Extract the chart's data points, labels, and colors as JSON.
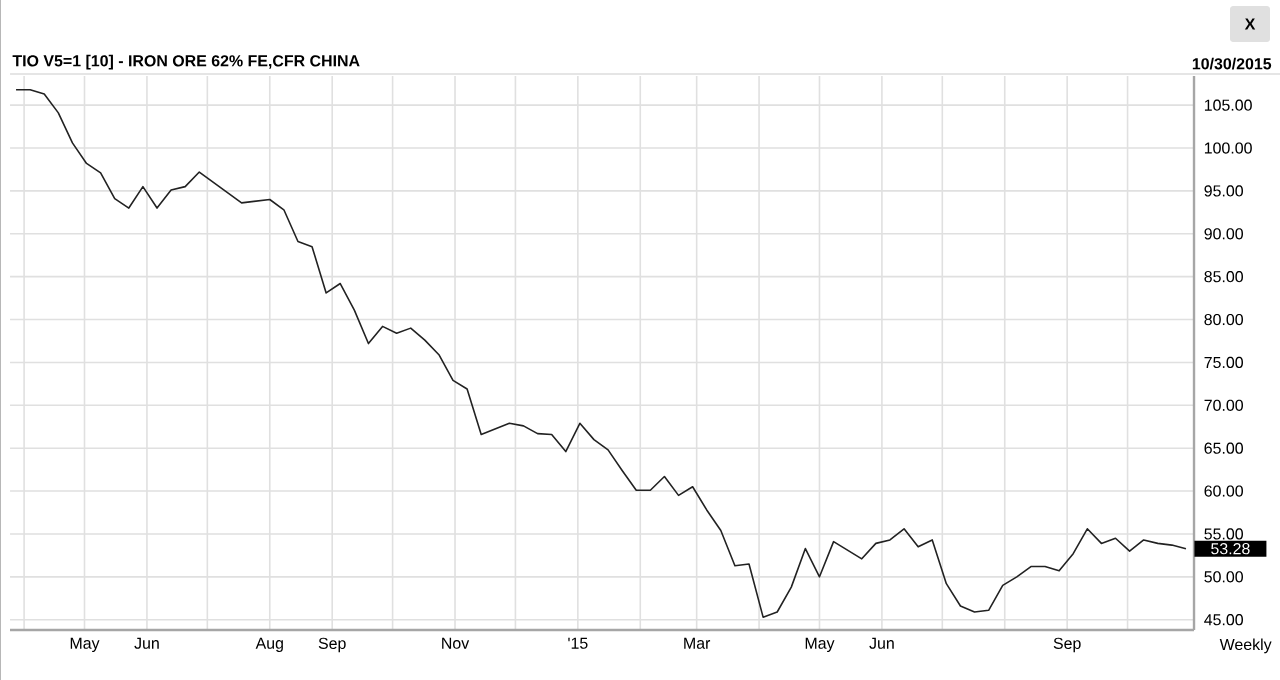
{
  "chart_data": {
    "type": "line",
    "title": "TIO V5=1 [10] - IRON ORE 62% FE,CFR CHINA",
    "x": [
      "2014-03-28",
      "2014-04-04",
      "2014-04-11",
      "2014-04-18",
      "2014-04-25",
      "2014-05-02",
      "2014-05-09",
      "2014-05-16",
      "2014-05-23",
      "2014-05-30",
      "2014-06-06",
      "2014-06-13",
      "2014-06-20",
      "2014-06-27",
      "2014-07-04",
      "2014-07-18",
      "2014-08-01",
      "2014-08-08",
      "2014-08-15",
      "2014-08-22",
      "2014-08-29",
      "2014-09-05",
      "2014-09-12",
      "2014-09-19",
      "2014-09-26",
      "2014-10-03",
      "2014-10-10",
      "2014-10-17",
      "2014-10-24",
      "2014-10-31",
      "2014-11-07",
      "2014-11-14",
      "2014-11-28",
      "2014-12-05",
      "2014-12-12",
      "2014-12-19",
      "2014-12-26",
      "2015-01-02",
      "2015-01-09",
      "2015-01-16",
      "2015-01-23",
      "2015-01-30",
      "2015-02-06",
      "2015-02-13",
      "2015-02-20",
      "2015-02-27",
      "2015-03-06",
      "2015-03-13",
      "2015-03-20",
      "2015-03-27",
      "2015-04-03",
      "2015-04-10",
      "2015-04-17",
      "2015-04-24",
      "2015-05-01",
      "2015-05-08",
      "2015-05-15",
      "2015-05-22",
      "2015-05-29",
      "2015-06-05",
      "2015-06-12",
      "2015-06-19",
      "2015-06-26",
      "2015-07-03",
      "2015-07-10",
      "2015-07-17",
      "2015-07-24",
      "2015-07-31",
      "2015-08-07",
      "2015-08-14",
      "2015-08-21",
      "2015-08-28",
      "2015-09-04",
      "2015-09-11",
      "2015-09-18",
      "2015-09-25",
      "2015-10-02",
      "2015-10-09",
      "2015-10-16",
      "2015-10-23",
      "2015-10-30"
    ],
    "series": [
      {
        "color": "#222222",
        "values": [
          106.8,
          106.8,
          106.3,
          104.1,
          100.6,
          98.2,
          97.1,
          94.1,
          93.0,
          95.5,
          93.0,
          95.1,
          95.5,
          97.2,
          96.0,
          93.6,
          94.0,
          92.8,
          89.1,
          88.5,
          83.1,
          84.2,
          81.1,
          77.2,
          79.2,
          78.4,
          79.0,
          77.6,
          75.9,
          72.9,
          71.9,
          66.6,
          67.9,
          67.6,
          66.7,
          66.6,
          64.6,
          67.9,
          66.0,
          64.8,
          62.4,
          60.1,
          60.1,
          61.7,
          59.5,
          60.5,
          57.8,
          55.4,
          51.3,
          51.5,
          45.3,
          45.9,
          48.8,
          53.3,
          50.0,
          54.1,
          53.1,
          52.1,
          53.9,
          54.3,
          55.6,
          53.5,
          54.3,
          49.2,
          46.6,
          45.9,
          46.1,
          49.0,
          50.0,
          51.2,
          51.2,
          50.7,
          52.7,
          55.6,
          53.9,
          54.5,
          53.0,
          54.3,
          53.9,
          53.7,
          53.28
        ]
      }
    ],
    "xlim": [
      "2014-03-25",
      "2015-11-03"
    ],
    "xticks": [
      {
        "value": "2014-04-01",
        "label": null
      },
      {
        "value": "2014-05-01",
        "label": "May"
      },
      {
        "value": "2014-06-01",
        "label": "Jun"
      },
      {
        "value": "2014-07-01",
        "label": null
      },
      {
        "value": "2014-08-01",
        "label": "Aug"
      },
      {
        "value": "2014-09-01",
        "label": "Sep"
      },
      {
        "value": "2014-10-01",
        "label": null
      },
      {
        "value": "2014-11-01",
        "label": "Nov"
      },
      {
        "value": "2014-12-01",
        "label": null
      },
      {
        "value": "2015-01-01",
        "label": "'15"
      },
      {
        "value": "2015-02-01",
        "label": null
      },
      {
        "value": "2015-03-01",
        "label": "Mar"
      },
      {
        "value": "2015-04-01",
        "label": null
      },
      {
        "value": "2015-05-01",
        "label": "May"
      },
      {
        "value": "2015-06-01",
        "label": "Jun"
      },
      {
        "value": "2015-07-01",
        "label": null
      },
      {
        "value": "2015-08-01",
        "label": null
      },
      {
        "value": "2015-09-01",
        "label": "Sep"
      },
      {
        "value": "2015-10-01",
        "label": null
      }
    ],
    "ylim": [
      43.8,
      108.4
    ],
    "yticks": [
      {
        "value": 45,
        "label": "45.00"
      },
      {
        "value": 50,
        "label": "50.00"
      },
      {
        "value": 55,
        "label": "55.00"
      },
      {
        "value": 60,
        "label": "60.00"
      },
      {
        "value": 65,
        "label": "65.00"
      },
      {
        "value": 70,
        "label": "70.00"
      },
      {
        "value": 75,
        "label": "75.00"
      },
      {
        "value": 80,
        "label": "80.00"
      },
      {
        "value": 85,
        "label": "85.00"
      },
      {
        "value": 90,
        "label": "90.00"
      },
      {
        "value": 95,
        "label": "95.00"
      },
      {
        "value": 100,
        "label": "100.00"
      },
      {
        "value": 105,
        "label": "105.00"
      }
    ],
    "grid": true,
    "marker": "none",
    "line_style": "solid",
    "annotations": [
      "10/30/2015",
      "Weekly",
      "X",
      {
        "text": "53.28",
        "x": "2015-10-30",
        "y": 53.28
      }
    ]
  }
}
